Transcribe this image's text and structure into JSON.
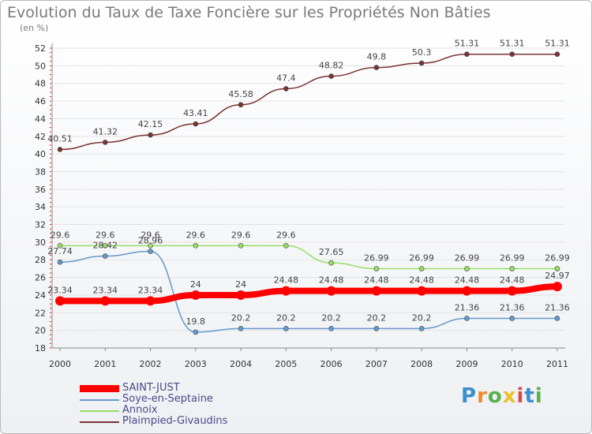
{
  "title": "Evolution du Taux de Taxe Foncière sur les Propriétés Non Bâties",
  "unit_label": "(en %)",
  "logo_text": "Proxiti",
  "chart_data": {
    "type": "line",
    "title": "Evolution du Taux de Taxe Foncière sur les Propriétés Non Bâties",
    "ylabel": "(en %)",
    "xlabel": "",
    "ylim": [
      18,
      52
    ],
    "yticks": [
      "18",
      "20",
      "22",
      "24",
      "26",
      "28",
      "30",
      "32",
      "34",
      "36",
      "38",
      "40",
      "42",
      "44",
      "46",
      "48",
      "50",
      "52"
    ],
    "categories": [
      "2000",
      "2001",
      "2002",
      "2003",
      "2004",
      "2005",
      "2006",
      "2007",
      "2008",
      "2009",
      "2010",
      "2011"
    ],
    "grid": true,
    "legend_position": "bottom-left",
    "series": [
      {
        "name": "SAINT-JUST",
        "color": "#ff0000",
        "values": [
          23.34,
          23.34,
          23.34,
          24,
          24,
          24.48,
          24.48,
          24.48,
          24.48,
          24.48,
          24.48,
          24.97
        ],
        "labels": [
          "23.34",
          "23.34",
          "23.34",
          "24",
          "24",
          "24.48",
          "24.48",
          "24.48",
          "24.48",
          "24.48",
          "24.48",
          "24.97"
        ]
      },
      {
        "name": "Soye-en-Septaine",
        "color": "#6699cc",
        "values": [
          27.74,
          28.42,
          28.96,
          19.8,
          20.2,
          20.2,
          20.2,
          20.2,
          20.2,
          21.36,
          21.36,
          21.36
        ],
        "labels": [
          "27.74",
          "28.42",
          "28.96",
          "19.8",
          "20.2",
          "20.2",
          "20.2",
          "20.2",
          "20.2",
          "21.36",
          "21.36",
          "21.36"
        ]
      },
      {
        "name": "Annoix",
        "color": "#99dd66",
        "values": [
          29.6,
          29.6,
          29.6,
          29.6,
          29.6,
          29.6,
          27.65,
          26.99,
          26.99,
          26.99,
          26.99,
          26.99
        ],
        "labels": [
          "29.6",
          "29.6",
          "29.6",
          "29.6",
          "29.6",
          "29.6",
          "27.65",
          "26.99",
          "26.99",
          "26.99",
          "26.99",
          "26.99"
        ]
      },
      {
        "name": "Plaimpied-Givaudins",
        "color": "#7a3333",
        "values": [
          40.51,
          41.32,
          42.15,
          43.41,
          45.58,
          47.4,
          48.82,
          49.8,
          50.3,
          51.31,
          51.31,
          51.31
        ],
        "labels": [
          "40.51",
          "41.32",
          "42.15",
          "43.41",
          "45.58",
          "47.4",
          "48.82",
          "49.8",
          "50.3",
          "51.31",
          "51.31",
          "51.31"
        ]
      }
    ]
  }
}
